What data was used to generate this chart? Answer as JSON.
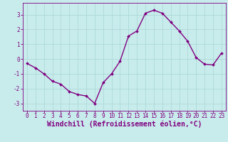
{
  "x": [
    0,
    1,
    2,
    3,
    4,
    5,
    6,
    7,
    8,
    9,
    10,
    11,
    12,
    13,
    14,
    15,
    16,
    17,
    18,
    19,
    20,
    21,
    22,
    23
  ],
  "y": [
    -0.3,
    -0.6,
    -1.0,
    -1.5,
    -1.7,
    -2.2,
    -2.4,
    -2.5,
    -3.0,
    -1.6,
    -1.0,
    -0.15,
    1.55,
    1.9,
    3.1,
    3.3,
    3.1,
    2.5,
    1.9,
    1.2,
    0.1,
    -0.35,
    -0.4,
    0.4
  ],
  "line_color": "#800080",
  "marker": "D",
  "marker_size": 2.0,
  "bg_color": "#c8ecec",
  "grid_color": "#aed8d8",
  "xlabel": "Windchill (Refroidissement éolien,°C)",
  "xlabel_color": "#800080",
  "tick_color": "#800080",
  "ylim": [
    -3.5,
    3.8
  ],
  "xlim": [
    -0.5,
    23.5
  ],
  "yticks": [
    -3,
    -2,
    -1,
    0,
    1,
    2,
    3
  ],
  "xticks": [
    0,
    1,
    2,
    3,
    4,
    5,
    6,
    7,
    8,
    9,
    10,
    11,
    12,
    13,
    14,
    15,
    16,
    17,
    18,
    19,
    20,
    21,
    22,
    23
  ],
  "tick_fontsize": 5.5,
  "xlabel_fontsize": 7.0,
  "linewidth": 1.0
}
